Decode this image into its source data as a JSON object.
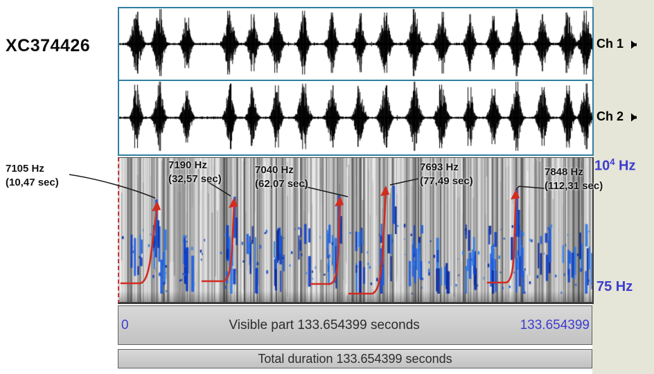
{
  "recording": {
    "id": "XC374426"
  },
  "channels": [
    {
      "label": "Ch 1"
    },
    {
      "label": "Ch 2"
    }
  ],
  "audio": {
    "duration_sec": 133.654399,
    "bursts": [
      {
        "sec": 4.9,
        "amp": 0.92
      },
      {
        "sec": 11.3,
        "amp": 1.0
      },
      {
        "sec": 19.1,
        "amp": 0.75
      },
      {
        "sec": 31.2,
        "amp": 0.95
      },
      {
        "sec": 37.7,
        "amp": 0.85
      },
      {
        "sec": 44.5,
        "amp": 0.9
      },
      {
        "sec": 52.1,
        "amp": 0.95
      },
      {
        "sec": 60.1,
        "amp": 0.9
      },
      {
        "sec": 67.9,
        "amp": 0.88
      },
      {
        "sec": 75.1,
        "amp": 0.9
      },
      {
        "sec": 83.5,
        "amp": 1.0
      },
      {
        "sec": 91.1,
        "amp": 0.92
      },
      {
        "sec": 99.1,
        "amp": 0.85
      },
      {
        "sec": 105.8,
        "amp": 0.8
      },
      {
        "sec": 112.2,
        "amp": 1.0
      },
      {
        "sec": 119.6,
        "amp": 0.85
      },
      {
        "sec": 126.8,
        "amp": 0.9
      },
      {
        "sec": 131.7,
        "amp": 0.95
      }
    ]
  },
  "spectrogram": {
    "freq_axis": {
      "top_base": "10",
      "top_exp": "4",
      "top_unit": "Hz",
      "bottom": "75 Hz"
    },
    "annotations": [
      {
        "freq": "7105 Hz",
        "time_label": "(10,47 sec)",
        "sec": 10.47
      },
      {
        "freq": "7190 Hz",
        "time_label": "(32,57 sec)",
        "sec": 32.57
      },
      {
        "freq": "7040 Hz",
        "time_label": "(62,07 sec)",
        "sec": 62.07
      },
      {
        "freq": "7693 Hz",
        "time_label": "(77,49 sec)",
        "sec": 77.49
      },
      {
        "freq": "7848 Hz",
        "time_label": "(112,31 sec)",
        "sec": 112.31
      }
    ]
  },
  "timeline": {
    "start": "0",
    "end": "133.654399",
    "visible_text": "Visible part 133.654399 seconds",
    "total_text": "Total duration 133.654399 seconds"
  },
  "colors": {
    "accent_blue": "#3c3ccf",
    "annotation_red": "#d22b20",
    "panel_border": "#2f7e9e",
    "trace_blue": "#1f5fd6",
    "side_panel": "#e5e5d8",
    "bar_fill": "#c9c9c9"
  }
}
